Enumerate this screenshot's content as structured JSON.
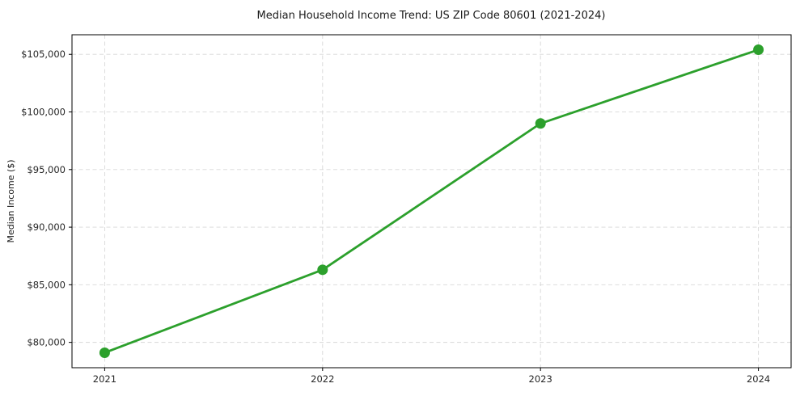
{
  "chart_data": {
    "type": "line",
    "title": "Median Household Income Trend: US ZIP Code 80601 (2021-2024)",
    "xlabel": "",
    "ylabel": "Median Income ($)",
    "x": [
      2021,
      2022,
      2023,
      2024
    ],
    "x_tick_labels": [
      "2021",
      "2022",
      "2023",
      "2024"
    ],
    "values": [
      79100,
      86300,
      99000,
      105400
    ],
    "y_ticks": [
      80000,
      85000,
      90000,
      95000,
      100000,
      105000
    ],
    "y_tick_labels": [
      "$80,000",
      "$85,000",
      "$90,000",
      "$95,000",
      "$100,000",
      "$105,000"
    ],
    "xlim": [
      2020.85,
      2024.15
    ],
    "ylim": [
      77800,
      106700
    ],
    "grid": true,
    "grid_style": "dashed",
    "legend": "none",
    "line_color": "#2ca02c",
    "marker": "circle",
    "background": "#ffffff"
  }
}
